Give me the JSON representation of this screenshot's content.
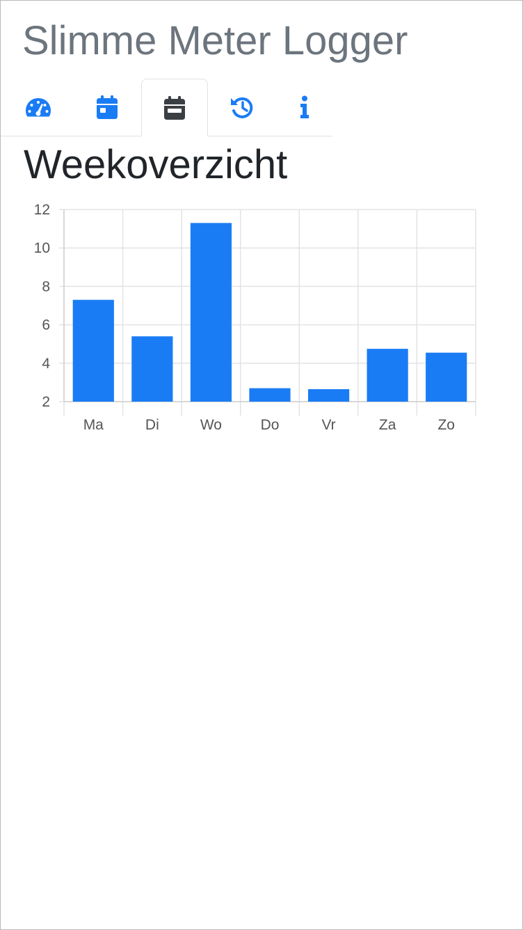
{
  "app": {
    "title": "Slimme Meter Logger"
  },
  "tabs": [
    {
      "icon": "tachometer-icon",
      "active": false
    },
    {
      "icon": "calendar-day-icon",
      "active": false
    },
    {
      "icon": "calendar-week-icon",
      "active": true
    },
    {
      "icon": "history-icon",
      "active": false
    },
    {
      "icon": "info-icon",
      "active": false
    }
  ],
  "colors": {
    "accent": "#1a7cf5",
    "active_icon": "#3a3f44",
    "title_gray": "#6c757d",
    "heading": "#212529",
    "grid": "#e3e3e3"
  },
  "page": {
    "heading": "Weekoverzicht"
  },
  "chart_data": {
    "type": "bar",
    "categories": [
      "Ma",
      "Di",
      "Wo",
      "Do",
      "Vr",
      "Za",
      "Zo"
    ],
    "values": [
      7.3,
      5.4,
      11.3,
      2.7,
      2.65,
      4.75,
      4.55
    ],
    "ylim": [
      2,
      12
    ],
    "yticks": [
      "2",
      "4",
      "6",
      "8",
      "10",
      "12"
    ],
    "grid": true,
    "legend": "none",
    "title": "",
    "xlabel": "",
    "ylabel": ""
  }
}
